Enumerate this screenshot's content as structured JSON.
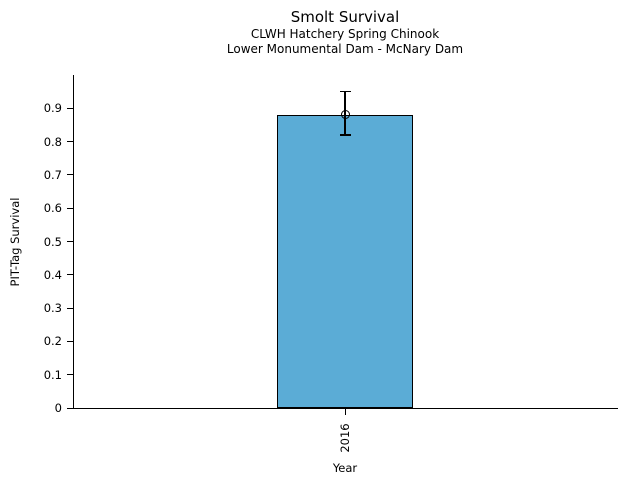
{
  "chart_data": {
    "type": "bar",
    "title": "Smolt Survival",
    "subtitle_lines": [
      "CLWH Hatchery Spring Chinook",
      "Lower Monumental Dam - McNary Dam"
    ],
    "xlabel": "Year",
    "ylabel": "PIT-Tag Survival",
    "categories": [
      "2016"
    ],
    "values": [
      0.88
    ],
    "error_bars": [
      {
        "lower": 0.82,
        "upper": 0.95
      }
    ],
    "marker": "open-circle",
    "ylim": [
      0,
      1.0
    ],
    "ytick_labels": [
      "0",
      "0.1",
      "0.2",
      "0.3",
      "0.4",
      "0.5",
      "0.6",
      "0.7",
      "0.8",
      "0.9"
    ],
    "bar_color": "#5BACD6",
    "bar_edge_color": "#000000",
    "axis_color": "#000000",
    "text_color": "#000000",
    "background_color": "#FFFFFF",
    "grid": false,
    "legend": "none"
  }
}
